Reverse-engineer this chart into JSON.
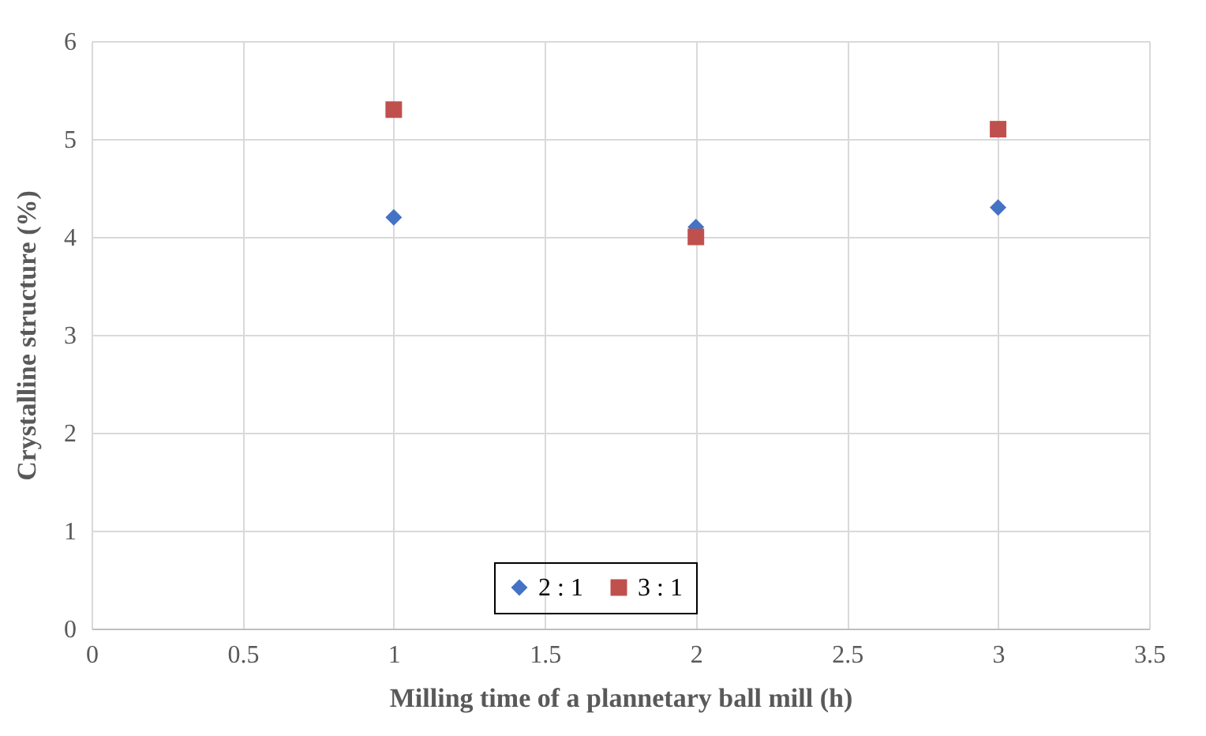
{
  "chart_data": {
    "type": "scatter",
    "xlabel": "Milling time of a plannetary ball mill (h)",
    "ylabel": "Crystalline  structure (%)",
    "x": [
      1,
      2,
      3
    ],
    "series": [
      {
        "name": "2 : 1",
        "color": "#4472c4",
        "marker": "diamond",
        "values": [
          4.2,
          4.1,
          4.3
        ]
      },
      {
        "name": "3 : 1",
        "color": "#c0504d",
        "marker": "square",
        "values": [
          5.3,
          4.0,
          5.1
        ]
      }
    ],
    "xlim": [
      0,
      3.5
    ],
    "xticks": [
      0,
      0.5,
      1,
      1.5,
      2,
      2.5,
      3,
      3.5
    ],
    "ylim": [
      0,
      6
    ],
    "yticks": [
      0,
      1,
      2,
      3,
      4,
      5,
      6
    ],
    "grid": true,
    "legend": "bottom"
  }
}
